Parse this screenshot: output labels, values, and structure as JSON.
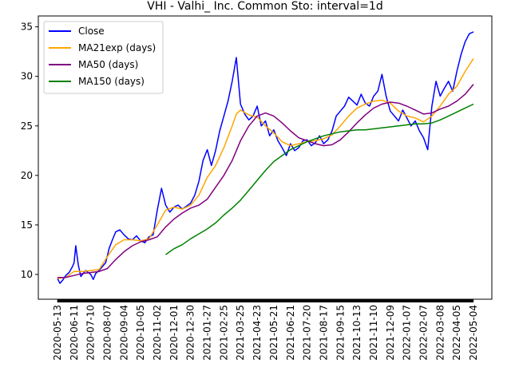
{
  "chart_data": {
    "type": "line",
    "title": "VHI - Valhi_ Inc. Common Sto: interval=1d",
    "xlabel": "",
    "ylabel": "",
    "ylim": [
      7.5,
      36.1
    ],
    "y_ticks": [
      10,
      15,
      20,
      25,
      30,
      35
    ],
    "x_tick_labels": [
      "2020-05-13",
      "2020-06-11",
      "2020-07-10",
      "2020-08-07",
      "2020-09-04",
      "2020-10-05",
      "2020-11-02",
      "2020-12-01",
      "2020-12-30",
      "2021-01-27",
      "2021-02-25",
      "2021-03-25",
      "2021-04-23",
      "2021-05-21",
      "2021-06-21",
      "2021-07-20",
      "2021-08-17",
      "2021-09-15",
      "2021-10-13",
      "2021-11-10",
      "2021-12-09",
      "2022-01-07",
      "2022-02-07",
      "2022-03-08",
      "2022-04-05",
      "2022-05-04"
    ],
    "grid": false,
    "legend_position": "top-left",
    "series": [
      {
        "name": "Close",
        "color": "#0000ff",
        "x": [
          0,
          3,
          6,
          10,
          14,
          18,
          20,
          22,
          25,
          28,
          31,
          34,
          37,
          40,
          43,
          46,
          50,
          54,
          58,
          62,
          66,
          70,
          75,
          80,
          85,
          90,
          95,
          100,
          105,
          110,
          115,
          120,
          125,
          130,
          135,
          140,
          145,
          150,
          155,
          160,
          165,
          170,
          175,
          180,
          185,
          190,
          195,
          200,
          205,
          210,
          215,
          220,
          225,
          230,
          235,
          240,
          245,
          250,
          255,
          260,
          265,
          270,
          275,
          280,
          285,
          290,
          295,
          300,
          305,
          310,
          315,
          320,
          325,
          330,
          335,
          340,
          345,
          350,
          355,
          360,
          365,
          370,
          375,
          380,
          385,
          390,
          395,
          400,
          405,
          410,
          415,
          420,
          425,
          430,
          435,
          440,
          445,
          450,
          455,
          460,
          465,
          470,
          475,
          480,
          485,
          490,
          495,
          500
        ],
        "values": [
          9.6,
          9.1,
          9.4,
          9.9,
          10.2,
          10.8,
          11.2,
          12.9,
          11.0,
          9.8,
          10.1,
          10.4,
          10.2,
          10.0,
          9.5,
          10.1,
          10.4,
          10.8,
          11.2,
          12.6,
          13.5,
          14.3,
          14.5,
          14.0,
          13.6,
          13.5,
          13.9,
          13.4,
          13.2,
          13.8,
          14.0,
          16.5,
          18.7,
          17.0,
          16.3,
          16.8,
          17.0,
          16.6,
          16.9,
          17.2,
          18.0,
          19.4,
          21.5,
          22.6,
          21.0,
          22.5,
          24.5,
          26.0,
          27.5,
          29.5,
          31.9,
          27.2,
          26.2,
          25.6,
          26.0,
          27.0,
          25.0,
          25.5,
          24.0,
          24.6,
          23.5,
          22.8,
          22.0,
          23.2,
          22.5,
          22.8,
          23.5,
          23.6,
          23.0,
          23.3,
          24.0,
          23.2,
          23.6,
          24.5,
          26.0,
          26.5,
          27.0,
          27.9,
          27.5,
          27.1,
          28.2,
          27.3,
          27.0,
          28.0,
          28.5,
          30.2,
          28.0,
          26.5,
          26.0,
          25.5,
          26.6,
          25.8,
          25.0,
          25.5,
          24.5,
          23.8,
          22.6,
          27.0,
          29.5,
          28.0,
          28.8,
          29.5,
          28.5,
          30.5,
          32.2,
          33.5,
          34.3,
          34.5
        ]
      },
      {
        "name": "MA21exp (days)",
        "color": "#ffa500",
        "x": [
          0,
          10,
          20,
          30,
          40,
          50,
          60,
          70,
          80,
          90,
          100,
          110,
          120,
          130,
          140,
          150,
          160,
          170,
          180,
          190,
          200,
          210,
          215,
          220,
          230,
          240,
          250,
          260,
          270,
          280,
          290,
          300,
          310,
          320,
          330,
          340,
          350,
          360,
          370,
          380,
          390,
          400,
          410,
          420,
          430,
          440,
          450,
          460,
          470,
          480,
          490,
          500
        ],
        "values": [
          9.6,
          9.7,
          10.3,
          10.3,
          10.4,
          10.5,
          11.8,
          13.0,
          13.5,
          13.5,
          13.4,
          13.6,
          15.0,
          16.5,
          16.8,
          16.6,
          17.0,
          18.0,
          19.8,
          21.0,
          22.8,
          25.0,
          26.2,
          26.6,
          26.1,
          25.9,
          25.0,
          24.3,
          23.4,
          23.0,
          23.2,
          23.4,
          23.5,
          23.7,
          24.1,
          25.0,
          26.0,
          26.8,
          27.2,
          27.5,
          27.6,
          27.3,
          26.5,
          26.0,
          25.8,
          25.4,
          26.0,
          27.0,
          28.2,
          29.0,
          30.5,
          31.8
        ]
      },
      {
        "name": "MA50 (days)",
        "color": "#800080",
        "x": [
          0,
          10,
          20,
          30,
          40,
          50,
          60,
          70,
          80,
          90,
          100,
          110,
          120,
          130,
          140,
          150,
          160,
          170,
          180,
          190,
          200,
          210,
          220,
          230,
          240,
          250,
          260,
          270,
          280,
          290,
          300,
          310,
          320,
          330,
          340,
          350,
          360,
          370,
          380,
          390,
          400,
          410,
          420,
          430,
          440,
          450,
          460,
          470,
          480,
          490,
          500
        ],
        "values": [
          9.7,
          9.7,
          9.9,
          10.1,
          10.2,
          10.3,
          10.6,
          11.5,
          12.3,
          12.9,
          13.3,
          13.5,
          13.8,
          14.8,
          15.6,
          16.2,
          16.7,
          17.0,
          17.6,
          18.8,
          20.0,
          21.5,
          23.5,
          25.0,
          26.0,
          26.3,
          26.0,
          25.3,
          24.5,
          23.8,
          23.5,
          23.2,
          23.0,
          23.1,
          23.6,
          24.4,
          25.3,
          26.1,
          26.8,
          27.2,
          27.4,
          27.3,
          27.0,
          26.6,
          26.2,
          26.3,
          26.7,
          27.0,
          27.5,
          28.2,
          29.2
        ]
      },
      {
        "name": "MA150 (days)",
        "color": "#008000",
        "x": [
          130,
          140,
          150,
          160,
          170,
          180,
          190,
          200,
          210,
          220,
          230,
          240,
          250,
          260,
          270,
          280,
          290,
          300,
          310,
          320,
          330,
          340,
          350,
          360,
          370,
          380,
          390,
          400,
          410,
          420,
          430,
          440,
          450,
          460,
          470,
          480,
          490,
          500
        ],
        "values": [
          12.0,
          12.6,
          13.0,
          13.6,
          14.1,
          14.6,
          15.2,
          16.0,
          16.7,
          17.5,
          18.5,
          19.5,
          20.5,
          21.4,
          22.0,
          22.6,
          23.0,
          23.4,
          23.7,
          24.0,
          24.2,
          24.4,
          24.5,
          24.6,
          24.6,
          24.7,
          24.8,
          24.9,
          25.0,
          25.1,
          25.2,
          25.2,
          25.3,
          25.6,
          26.0,
          26.4,
          26.8,
          27.2
        ]
      }
    ]
  }
}
